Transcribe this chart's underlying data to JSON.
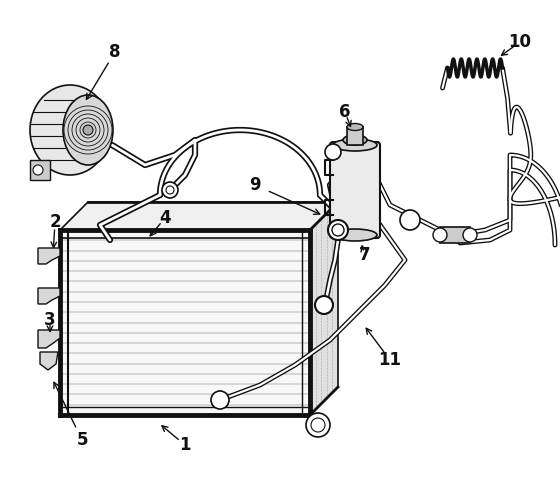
{
  "bg_color": "#ffffff",
  "line_color": "#111111",
  "figsize": [
    5.6,
    4.95
  ],
  "dpi": 100,
  "xlim": [
    0,
    560
  ],
  "ylim": [
    0,
    495
  ]
}
